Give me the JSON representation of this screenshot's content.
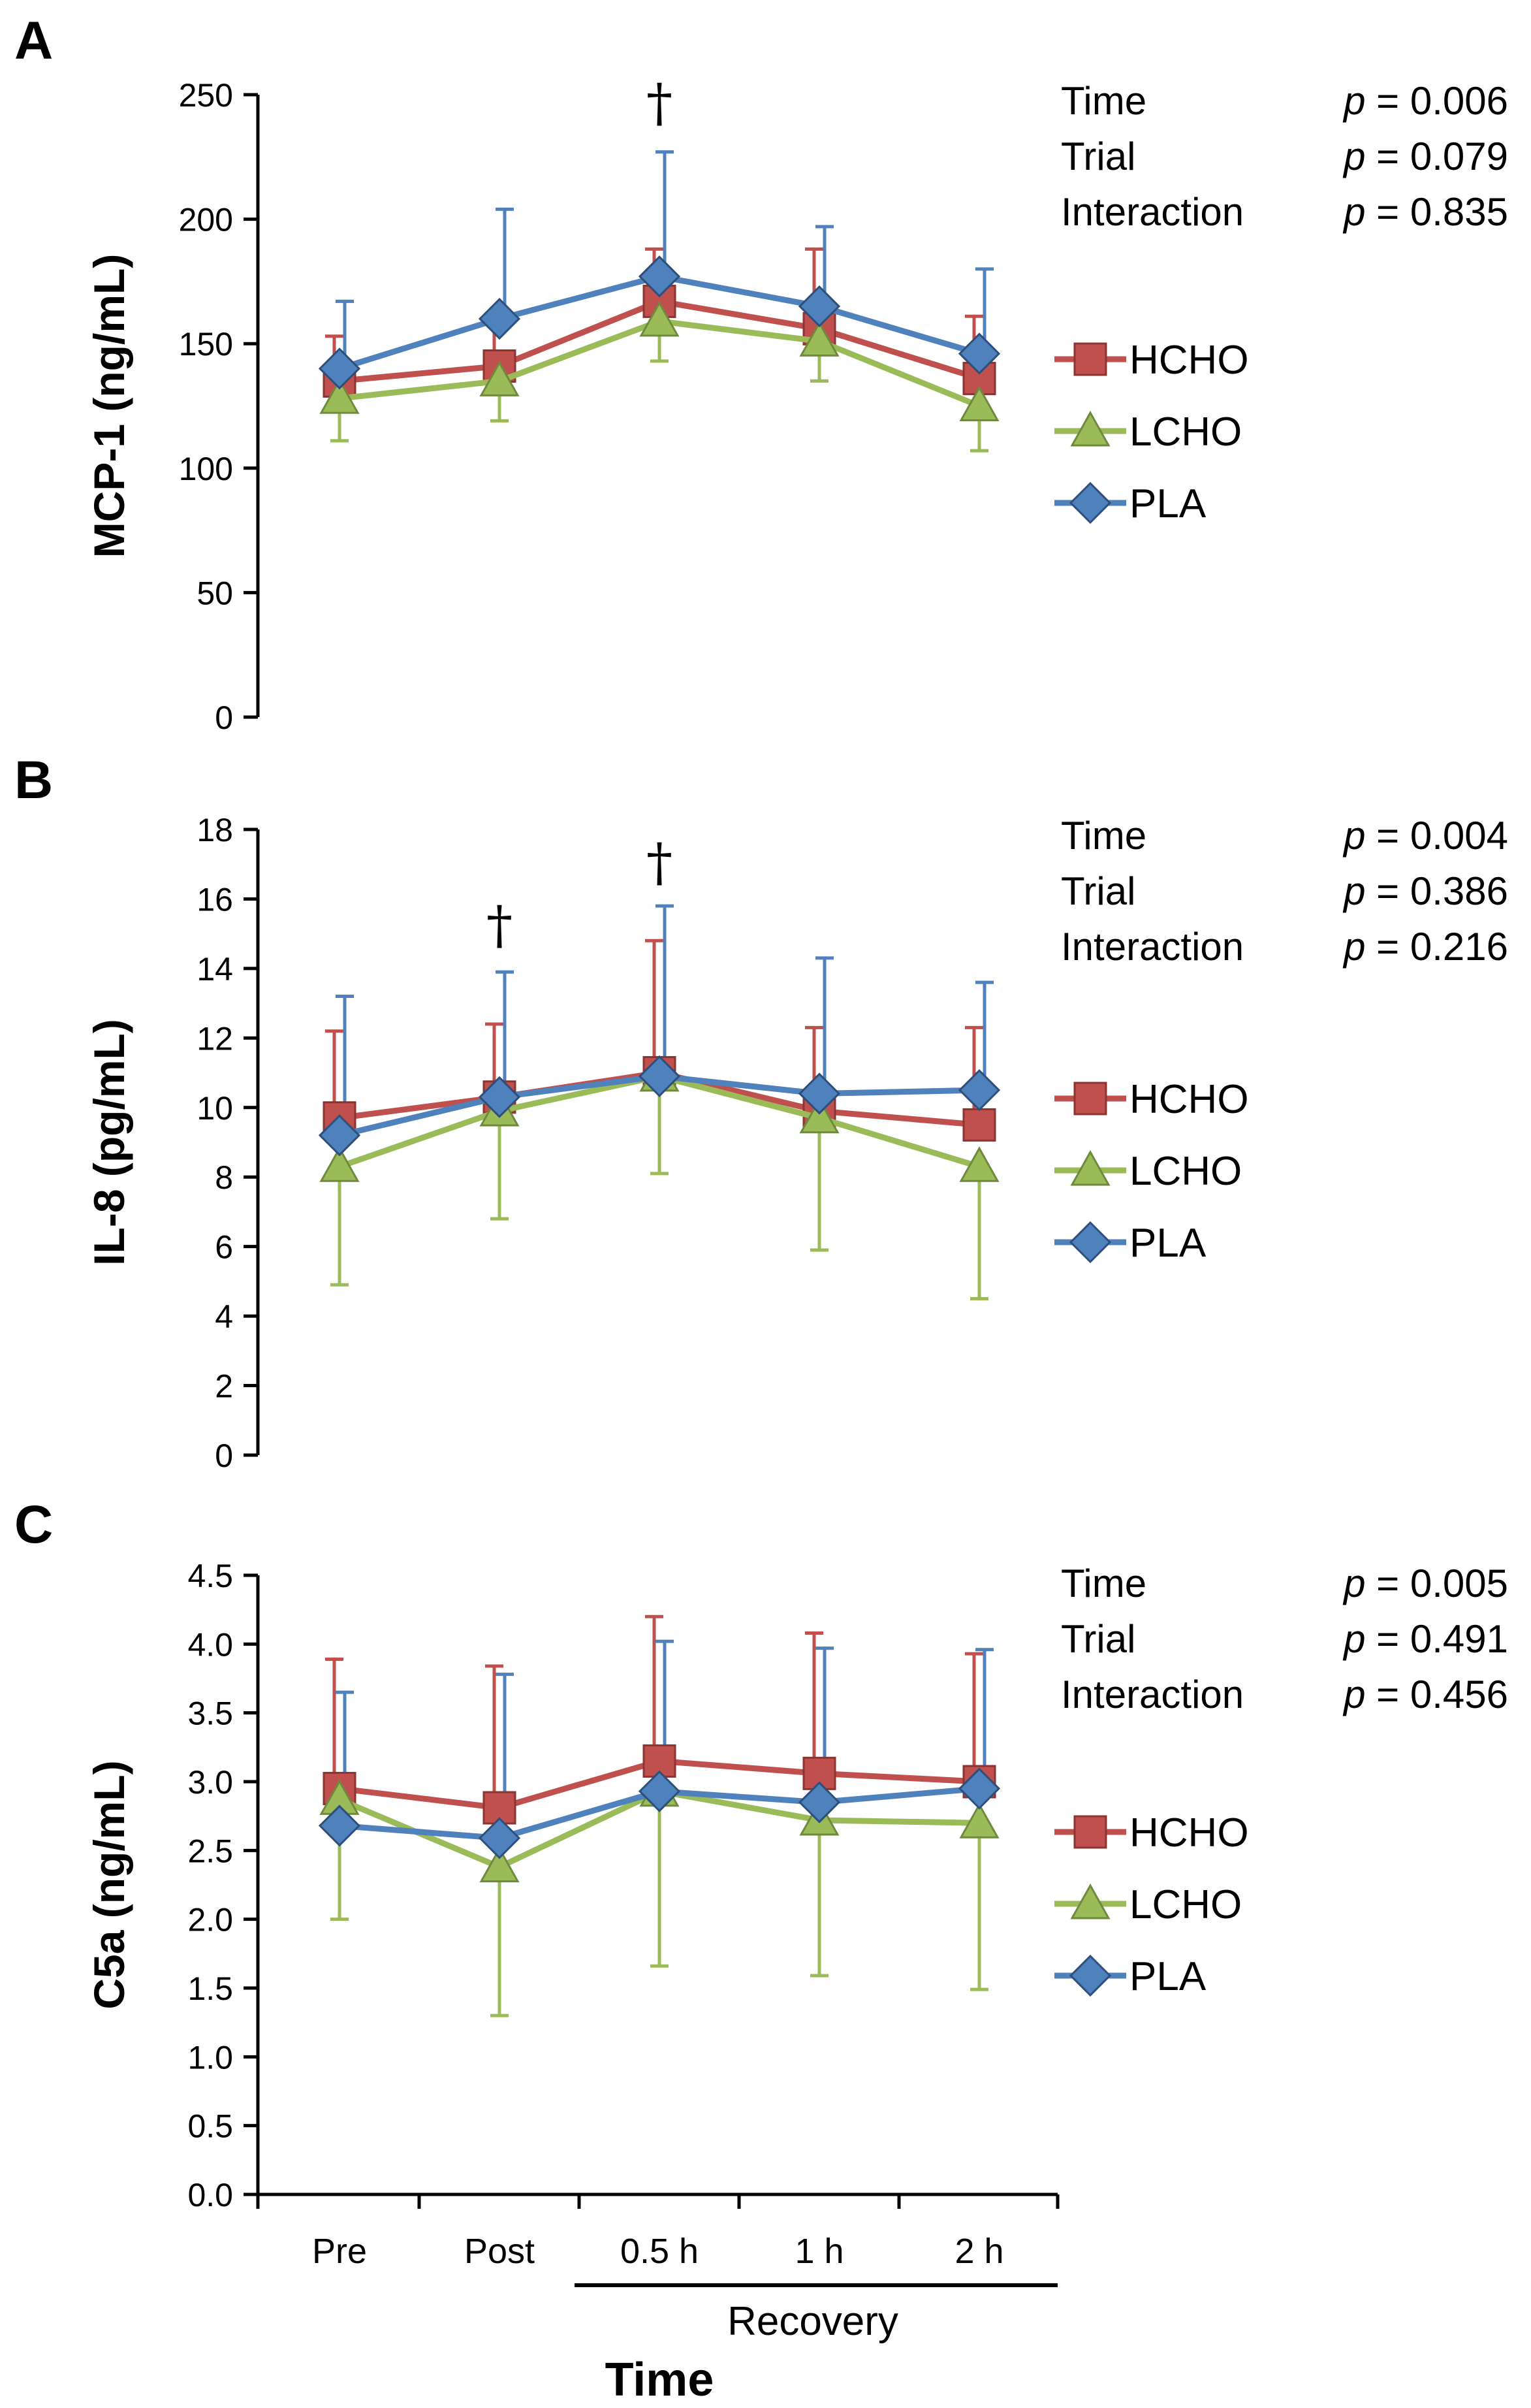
{
  "colors": {
    "HCHO": "#c0504d",
    "LCHO": "#9bbb59",
    "PLA": "#4f81bd",
    "axis": "#000000"
  },
  "x_title": "Time",
  "recovery_label": "Recovery",
  "chart_data": [
    {
      "type": "line",
      "panel": "A",
      "ylabel": "MCP-1 (ng/mL)",
      "categories": [
        "Pre",
        "Post",
        "0.5 h",
        "1 h",
        "2 h"
      ],
      "ylim": [
        0,
        250
      ],
      "yticks": [
        0,
        50,
        100,
        150,
        200,
        250
      ],
      "tick_labels": [
        "0",
        "50",
        "100",
        "150",
        "200",
        "250"
      ],
      "series": [
        {
          "name": "HCHO",
          "values": [
            135,
            141,
            167,
            156,
            136
          ],
          "err_up": [
            153,
            160,
            188,
            188,
            161
          ],
          "err_down": [
            135,
            141,
            167,
            156,
            136
          ]
        },
        {
          "name": "LCHO",
          "values": [
            128,
            135,
            159,
            151,
            125
          ],
          "err_up": [
            128,
            135,
            159,
            151,
            125
          ],
          "err_down": [
            111,
            119,
            143,
            135,
            107
          ]
        },
        {
          "name": "PLA",
          "values": [
            140,
            160,
            177,
            165,
            146
          ],
          "err_up": [
            167,
            204,
            227,
            197,
            180
          ],
          "err_down": [
            140,
            160,
            177,
            165,
            146
          ]
        }
      ],
      "daggers": [
        {
          "category": "0.5 h",
          "symbol": "†",
          "y": 246
        }
      ],
      "stats": [
        {
          "label": "Time",
          "p_label": "p",
          "value": "= 0.006"
        },
        {
          "label": "Trial",
          "p_label": "p",
          "value": "= 0.079"
        },
        {
          "label": "Interaction",
          "p_label": "p",
          "value": "= 0.835"
        }
      ],
      "legend": [
        "HCHO",
        "LCHO",
        "PLA"
      ]
    },
    {
      "type": "line",
      "panel": "B",
      "ylabel": "IL-8 (pg/mL)",
      "categories": [
        "Pre",
        "Post",
        "0.5 h",
        "1 h",
        "2 h"
      ],
      "ylim": [
        0,
        18
      ],
      "yticks": [
        0,
        2,
        4,
        6,
        8,
        10,
        12,
        14,
        16,
        18
      ],
      "tick_labels": [
        "0",
        "2",
        "4",
        "6",
        "8",
        "10",
        "12",
        "14",
        "16",
        "18"
      ],
      "series": [
        {
          "name": "HCHO",
          "values": [
            9.7,
            10.3,
            11.0,
            9.9,
            9.5
          ],
          "err_up": [
            12.2,
            12.4,
            14.8,
            12.3,
            12.3
          ],
          "err_down": [
            9.7,
            10.3,
            11.0,
            9.9,
            9.5
          ]
        },
        {
          "name": "LCHO",
          "values": [
            8.3,
            9.9,
            10.9,
            9.7,
            8.3
          ],
          "err_up": [
            8.3,
            9.9,
            10.9,
            9.7,
            8.3
          ],
          "err_down": [
            4.9,
            6.8,
            8.1,
            5.9,
            4.5
          ]
        },
        {
          "name": "PLA",
          "values": [
            9.2,
            10.3,
            10.9,
            10.4,
            10.5
          ],
          "err_up": [
            13.2,
            13.9,
            15.8,
            14.3,
            13.6
          ],
          "err_down": [
            9.2,
            10.3,
            10.9,
            10.4,
            10.5
          ]
        }
      ],
      "daggers": [
        {
          "category": "Post",
          "symbol": "†",
          "y": 15.2
        },
        {
          "category": "0.5 h",
          "symbol": "†",
          "y": 17.0
        }
      ],
      "stats": [
        {
          "label": "Time",
          "p_label": "p",
          "value": "= 0.004"
        },
        {
          "label": "Trial",
          "p_label": "p",
          "value": "= 0.386"
        },
        {
          "label": "Interaction",
          "p_label": "p",
          "value": "= 0.216"
        }
      ],
      "legend": [
        "HCHO",
        "LCHO",
        "PLA"
      ]
    },
    {
      "type": "line",
      "panel": "C",
      "ylabel": "C5a (ng/mL)",
      "categories": [
        "Pre",
        "Post",
        "0.5 h",
        "1 h",
        "2 h"
      ],
      "ylim": [
        0,
        4.5
      ],
      "yticks": [
        0,
        0.5,
        1.0,
        1.5,
        2.0,
        2.5,
        3.0,
        3.5,
        4.0,
        4.5
      ],
      "tick_labels": [
        "0.0",
        "0.5",
        "1.0",
        "1.5",
        "2.0",
        "2.5",
        "3.0",
        "3.5",
        "4.0",
        "4.5"
      ],
      "series": [
        {
          "name": "HCHO",
          "values": [
            2.95,
            2.81,
            3.15,
            3.06,
            3.0
          ],
          "err_up": [
            3.89,
            3.84,
            4.2,
            4.08,
            3.93
          ],
          "err_down": [
            2.95,
            2.81,
            3.15,
            3.06,
            3.0
          ]
        },
        {
          "name": "LCHO",
          "values": [
            2.87,
            2.38,
            2.93,
            2.72,
            2.7
          ],
          "err_up": [
            2.87,
            2.38,
            2.93,
            2.72,
            2.7
          ],
          "err_down": [
            2.0,
            1.3,
            1.66,
            1.59,
            1.49
          ]
        },
        {
          "name": "PLA",
          "values": [
            2.68,
            2.59,
            2.93,
            2.85,
            2.95
          ],
          "err_up": [
            3.65,
            3.78,
            4.02,
            3.97,
            3.96
          ],
          "err_down": [
            2.68,
            2.59,
            2.93,
            2.85,
            2.95
          ]
        }
      ],
      "daggers": [],
      "stats": [
        {
          "label": "Time",
          "p_label": "p",
          "value": "= 0.005"
        },
        {
          "label": "Trial",
          "p_label": "p",
          "value": "= 0.491"
        },
        {
          "label": "Interaction",
          "p_label": "p",
          "value": "= 0.456"
        }
      ],
      "legend": [
        "HCHO",
        "LCHO",
        "PLA"
      ]
    }
  ]
}
